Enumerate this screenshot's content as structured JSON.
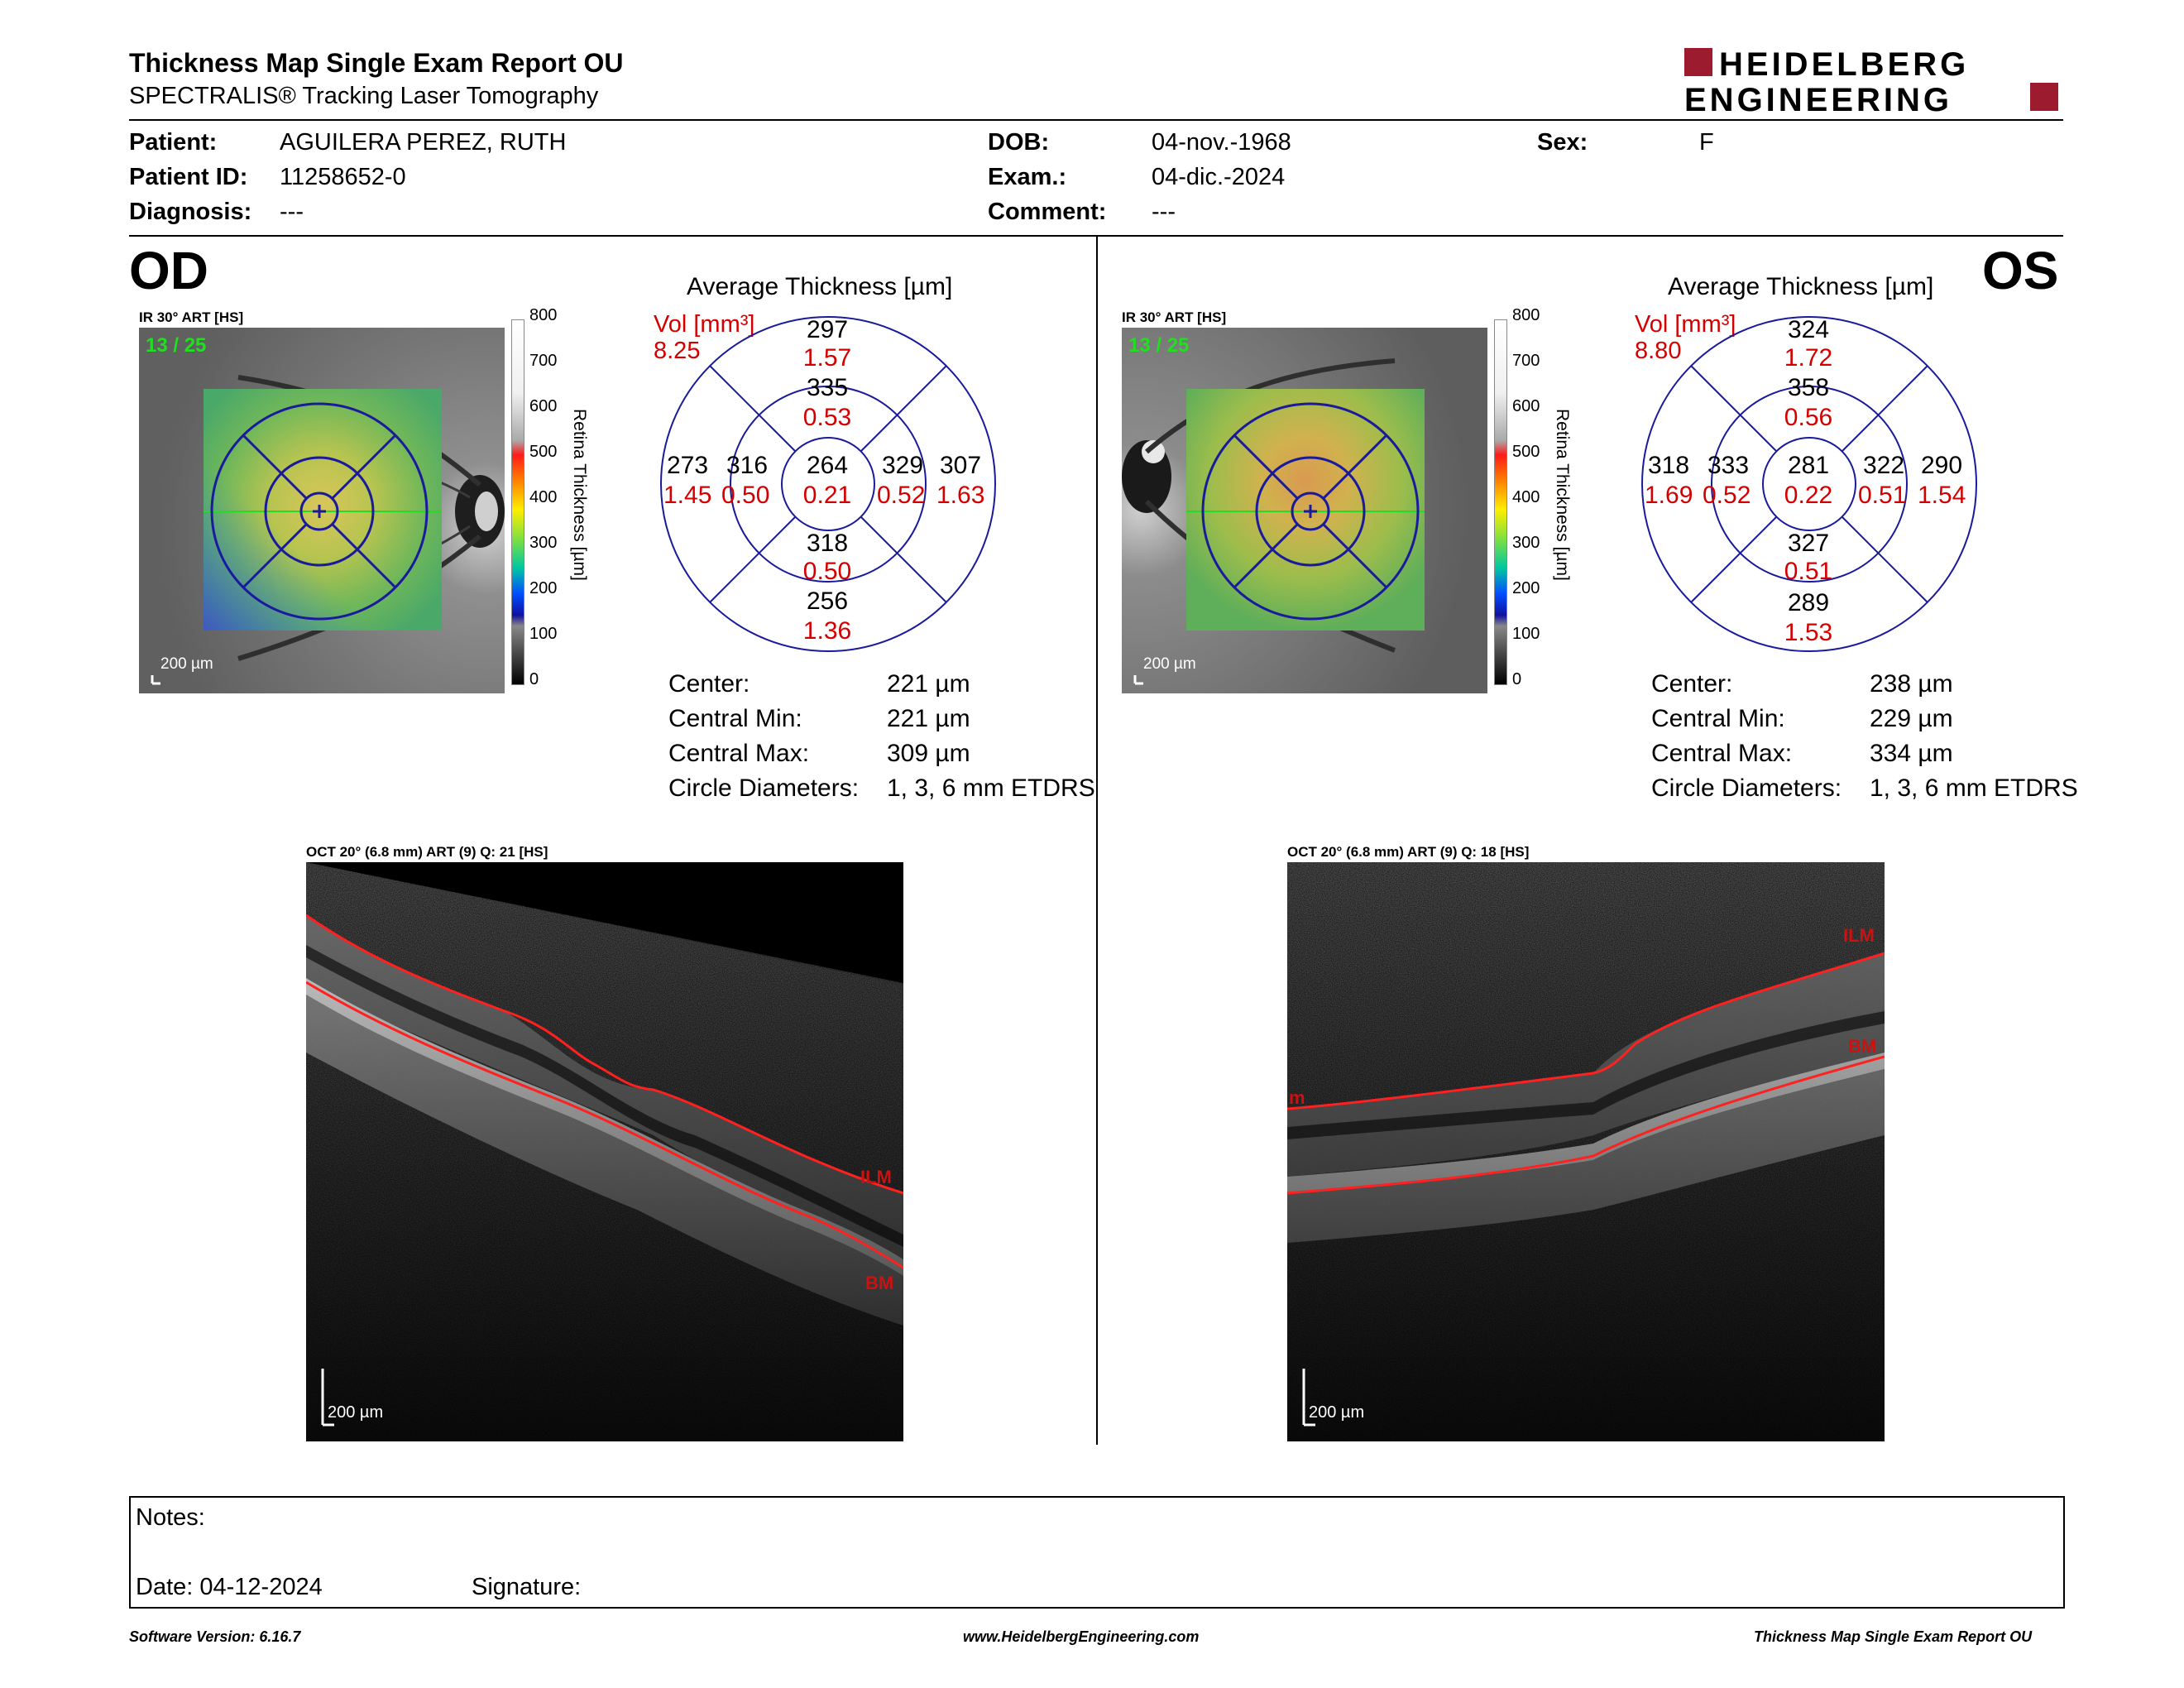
{
  "report": {
    "title": "Thickness Map Single Exam Report OU",
    "subtitle": "SPECTRALIS® Tracking Laser Tomography",
    "logo_line1": "HEIDELBERG",
    "logo_line2": "ENGINEERING"
  },
  "patient": {
    "patient_label": "Patient:",
    "patient_value": "AGUILERA PEREZ, RUTH",
    "id_label": "Patient ID:",
    "id_value": "11258652-0",
    "diagnosis_label": "Diagnosis:",
    "diagnosis_value": "---",
    "dob_label": "DOB:",
    "dob_value": "04-nov.-1968",
    "exam_label": "Exam.:",
    "exam_value": "04-dic.-2024",
    "comment_label": "Comment:",
    "comment_value": "---",
    "sex_label": "Sex:",
    "sex_value": "F"
  },
  "scale": {
    "ticks": [
      "800",
      "700",
      "600",
      "500",
      "400",
      "300",
      "200",
      "100",
      "0"
    ],
    "title": "Retina Thickness [µm]"
  },
  "od": {
    "eye": "OD",
    "ir_label": "IR 30° ART [HS]",
    "frame_label": "13 / 25",
    "scalebar": "200 µm",
    "avg_title": "Average Thickness [µm]",
    "vol_label": "Vol [mm³]",
    "vol_value": "8.25",
    "grid": {
      "outer_sup_t": "297",
      "outer_sup_v": "1.57",
      "inner_sup_t": "335",
      "inner_sup_v": "0.53",
      "outer_left_t": "273",
      "outer_left_v": "1.45",
      "inner_left_t": "316",
      "inner_left_v": "0.50",
      "center_t": "264",
      "center_v": "0.21",
      "inner_right_t": "329",
      "inner_right_v": "0.52",
      "outer_right_t": "307",
      "outer_right_v": "1.63",
      "inner_inf_t": "318",
      "inner_inf_v": "0.50",
      "outer_inf_t": "256",
      "outer_inf_v": "1.36"
    },
    "stats": {
      "center_label": "Center:",
      "center_value": "221 µm",
      "min_label": "Central Min:",
      "min_value": "221 µm",
      "max_label": "Central Max:",
      "max_value": "309 µm",
      "diam_label": "Circle Diameters:",
      "diam_value": "1, 3, 6 mm ETDRS"
    },
    "oct_label": "OCT 20° (6.8 mm) ART (9) Q: 21 [HS]",
    "oct_ilm": "ILM",
    "oct_bm": "BM",
    "oct_scalebar": "200 µm"
  },
  "os": {
    "eye": "OS",
    "ir_label": "IR 30° ART [HS]",
    "frame_label": "13 / 25",
    "scalebar": "200 µm",
    "avg_title": "Average Thickness [µm]",
    "vol_label": "Vol [mm³]",
    "vol_value": "8.80",
    "grid": {
      "outer_sup_t": "324",
      "outer_sup_v": "1.72",
      "inner_sup_t": "358",
      "inner_sup_v": "0.56",
      "outer_left_t": "318",
      "outer_left_v": "1.69",
      "inner_left_t": "333",
      "inner_left_v": "0.52",
      "center_t": "281",
      "center_v": "0.22",
      "inner_right_t": "322",
      "inner_right_v": "0.51",
      "outer_right_t": "290",
      "outer_right_v": "1.54",
      "inner_inf_t": "327",
      "inner_inf_v": "0.51",
      "outer_inf_t": "289",
      "outer_inf_v": "1.53"
    },
    "stats": {
      "center_label": "Center:",
      "center_value": "238 µm",
      "min_label": "Central Min:",
      "min_value": "229 µm",
      "max_label": "Central Max:",
      "max_value": "334 µm",
      "diam_label": "Circle Diameters:",
      "diam_value": "1, 3, 6 mm ETDRS"
    },
    "oct_label": "OCT 20° (6.8 mm) ART (9) Q: 18 [HS]",
    "oct_ilm": "ILM",
    "oct_bm": "BM",
    "oct_left_mark": "m",
    "oct_scalebar": "200 µm"
  },
  "notes": {
    "notes_label": "Notes:",
    "date_label": "Date: 04-12-2024",
    "signature_label": "Signature:"
  },
  "footer": {
    "software": "Software Version: 6.16.7",
    "website": "www.HeidelbergEngineering.com",
    "report": "Thickness Map Single Exam Report OU"
  },
  "colors": {
    "vol_red": "#d40000",
    "grid_blue": "#1a1a9c",
    "logo_red": "#9c1b2e"
  }
}
